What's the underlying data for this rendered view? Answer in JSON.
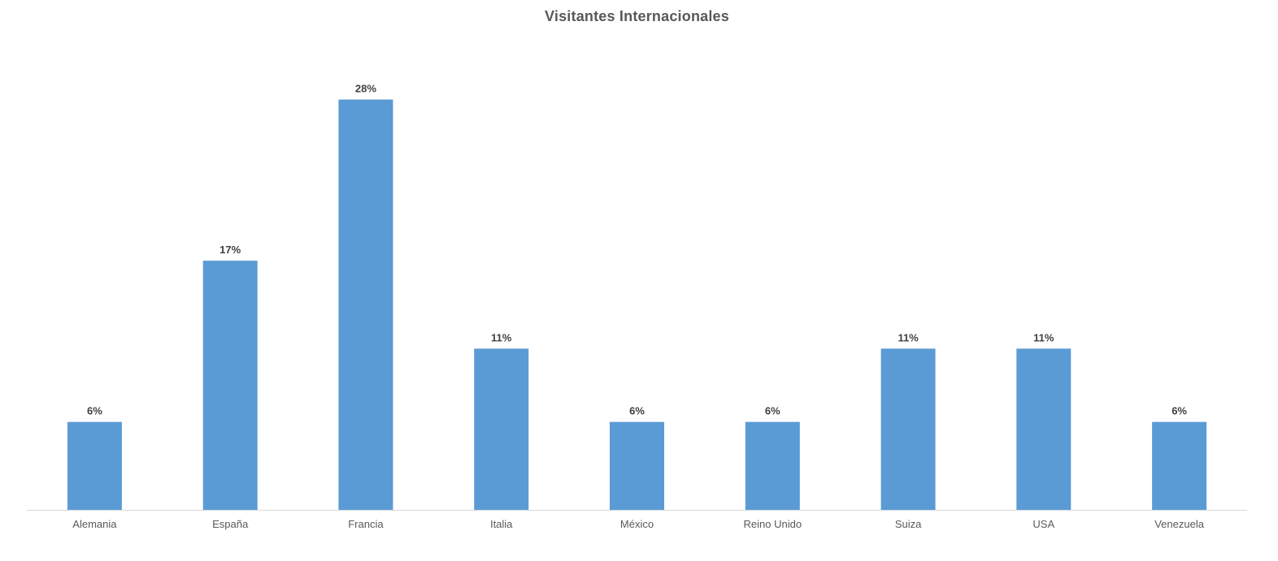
{
  "chart_data": {
    "type": "bar",
    "title": "Visitantes  Internacionales",
    "xlabel": "",
    "ylabel": "",
    "categories": [
      "Alemania",
      "España",
      "Francia",
      "Italia",
      "México",
      "Reino Unido",
      "Suiza",
      "USA",
      "Venezuela"
    ],
    "values": [
      6,
      17,
      28,
      11,
      6,
      6,
      11,
      11,
      6
    ],
    "data_labels": [
      "6%",
      "17%",
      "28%",
      "11%",
      "6%",
      "6%",
      "11%",
      "11%",
      "6%"
    ],
    "unit": "%",
    "ylim": [
      0,
      30
    ],
    "grid": false,
    "legend": "none",
    "bar_color": "#5B9BD5",
    "axis_color": "#D9D9D9"
  }
}
